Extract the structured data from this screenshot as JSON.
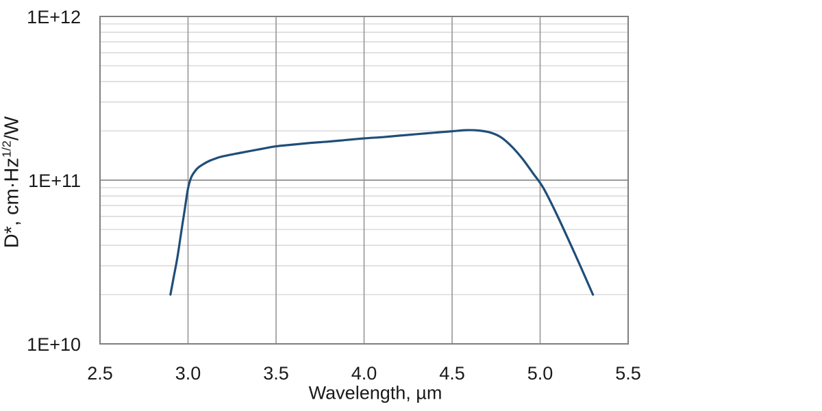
{
  "chart_data": {
    "type": "line",
    "title": "",
    "xlabel": "Wavelength, µm",
    "ylabel": "D*, cm·Hz1/2/W",
    "ylabel_parts": {
      "prefix": "D*, cm·Hz",
      "sup": "1/2",
      "suffix": "/W"
    },
    "x_axis": {
      "min": 2.5,
      "max": 5.5,
      "ticks": [
        2.5,
        3.0,
        3.5,
        4.0,
        4.5,
        5.0,
        5.5
      ],
      "tick_labels": [
        "2.5",
        "3.0",
        "3.5",
        "4.0",
        "4.5",
        "5.0",
        "5.5"
      ]
    },
    "y_axis": {
      "scale": "log",
      "min": 10000000000.0,
      "max": 1000000000000.0,
      "ticks": [
        10000000000.0,
        100000000000.0,
        1000000000000.0
      ],
      "tick_labels": [
        "1E+10",
        "1E+11",
        "1E+12"
      ],
      "minor_gridlines": true
    },
    "grid": {
      "vertical_major": true,
      "horizontal_major": true,
      "horizontal_minor": true
    },
    "legend": "none",
    "series": [
      {
        "name": "D*",
        "color": "#1f4e79",
        "points": [
          [
            2.9,
            20000000000.0
          ],
          [
            2.92,
            26000000000.0
          ],
          [
            2.94,
            34000000000.0
          ],
          [
            2.96,
            47000000000.0
          ],
          [
            2.98,
            65000000000.0
          ],
          [
            3.0,
            89000000000.0
          ],
          [
            3.02,
            105000000000.0
          ],
          [
            3.05,
            117000000000.0
          ],
          [
            3.08,
            124000000000.0
          ],
          [
            3.12,
            131000000000.0
          ],
          [
            3.16,
            136000000000.0
          ],
          [
            3.2,
            140000000000.0
          ],
          [
            3.3,
            147000000000.0
          ],
          [
            3.4,
            154000000000.0
          ],
          [
            3.5,
            161000000000.0
          ],
          [
            3.6,
            165000000000.0
          ],
          [
            3.7,
            169000000000.0
          ],
          [
            3.8,
            172000000000.0
          ],
          [
            3.9,
            176000000000.0
          ],
          [
            4.0,
            180000000000.0
          ],
          [
            4.1,
            183000000000.0
          ],
          [
            4.2,
            187000000000.0
          ],
          [
            4.3,
            191000000000.0
          ],
          [
            4.4,
            195000000000.0
          ],
          [
            4.5,
            199000000000.0
          ],
          [
            4.58,
            202000000000.0
          ],
          [
            4.65,
            201000000000.0
          ],
          [
            4.72,
            195000000000.0
          ],
          [
            4.78,
            182000000000.0
          ],
          [
            4.84,
            160000000000.0
          ],
          [
            4.9,
            135000000000.0
          ],
          [
            4.96,
            110000000000.0
          ],
          [
            5.02,
            89000000000.0
          ],
          [
            5.1,
            60000000000.0
          ],
          [
            5.2,
            35000000000.0
          ],
          [
            5.3,
            20000000000.0
          ]
        ]
      }
    ],
    "colors": {
      "curve": "#1f4e79",
      "plot_border": "#7f7f7f",
      "major_gridline": "#8c8c8c",
      "vertical_gridline": "#969696",
      "minor_gridline": "#cfcfcf",
      "text": "#1a1a1a",
      "background": "#ffffff"
    }
  }
}
